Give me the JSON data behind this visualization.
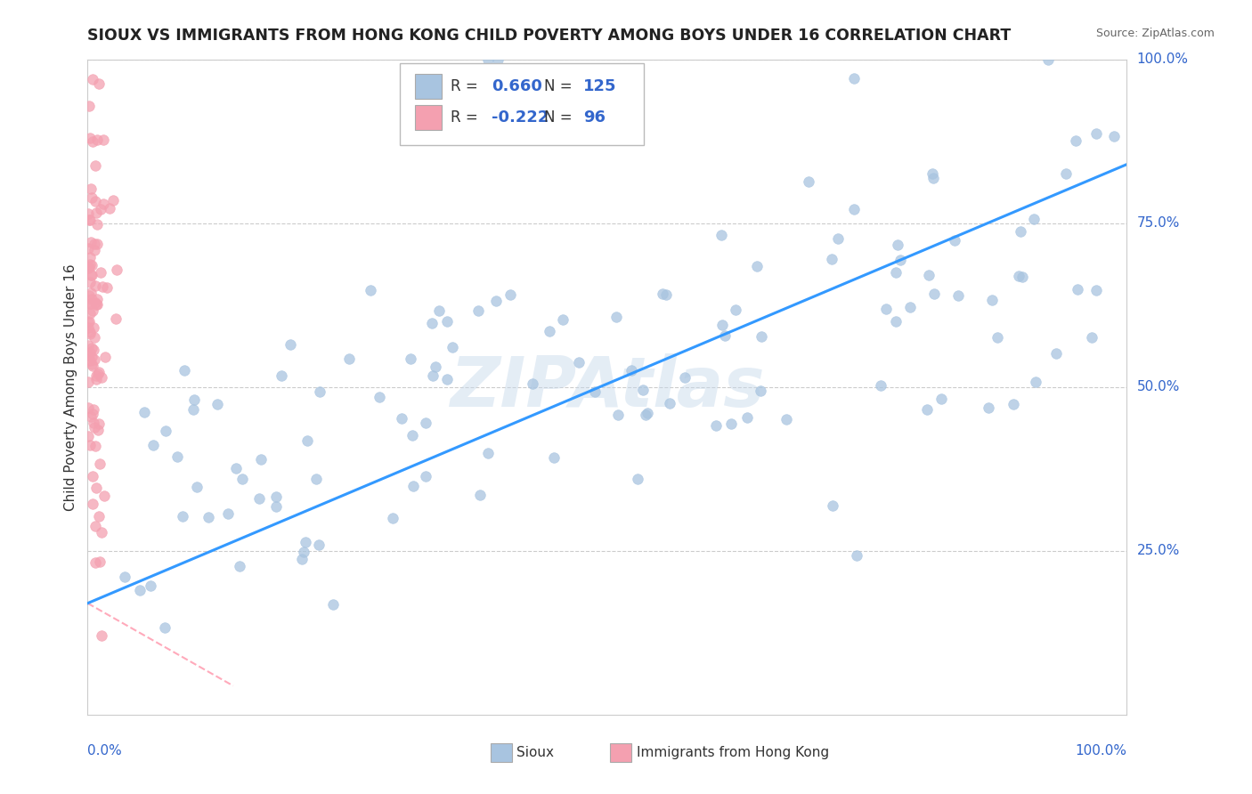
{
  "title": "SIOUX VS IMMIGRANTS FROM HONG KONG CHILD POVERTY AMONG BOYS UNDER 16 CORRELATION CHART",
  "source": "Source: ZipAtlas.com",
  "ylabel": "Child Poverty Among Boys Under 16",
  "legend_r_blue": "0.660",
  "legend_n_blue": "125",
  "legend_r_pink": "-0.222",
  "legend_n_pink": "96",
  "watermark": "ZIPAtlas",
  "blue_color": "#a8c4e0",
  "pink_color": "#f4a0b0",
  "trend_blue": "#3399ff",
  "trend_pink": "#ffaabb",
  "background": "#ffffff",
  "grid_color": "#cccccc",
  "tick_color": "#3366cc",
  "title_color": "#222222",
  "label_color": "#333333",
  "source_color": "#666666",
  "ytick_values": [
    0.0,
    0.25,
    0.5,
    0.75,
    1.0
  ],
  "ytick_labels": [
    "0.0%",
    "25.0%",
    "50.0%",
    "75.0%",
    "100.0%"
  ]
}
